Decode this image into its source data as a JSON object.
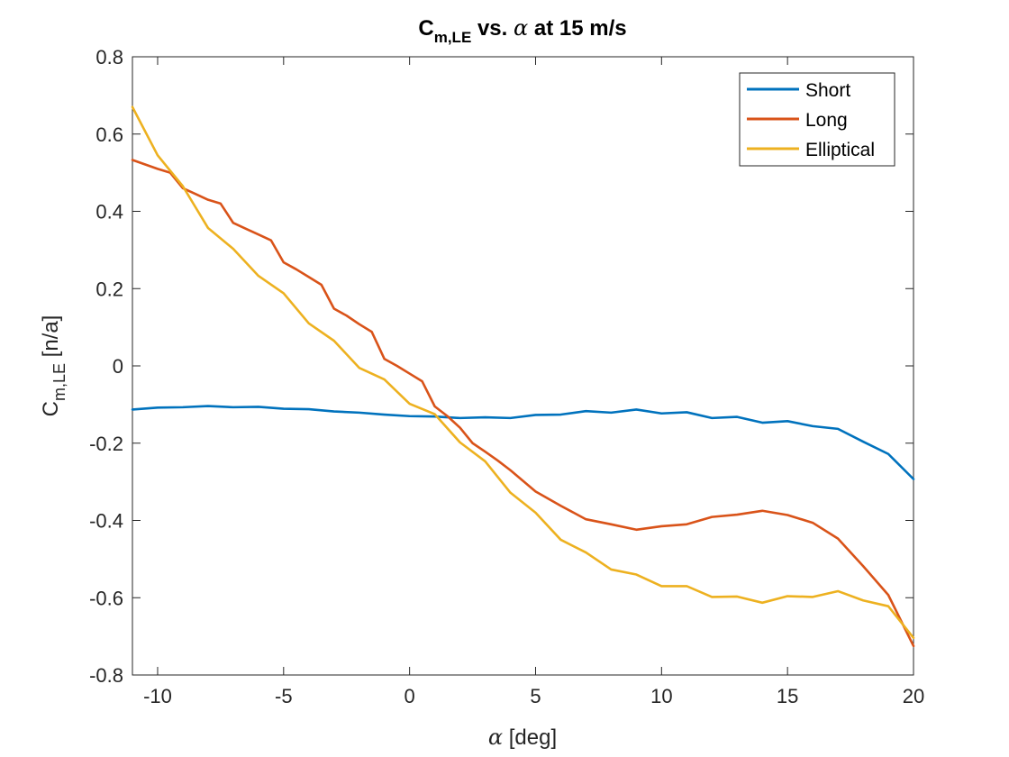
{
  "chart_data": {
    "type": "line",
    "title": {
      "main": "C",
      "subscript": "m,LE",
      "mid": " vs. ",
      "symbol": "α",
      "suffix": " at 15 m/s"
    },
    "xlabel": {
      "symbol": "α",
      "text": " [deg]"
    },
    "ylabel": {
      "main": "C",
      "subscript": "m,LE",
      "suffix": " [n/a]"
    },
    "xlim": [
      -11,
      20
    ],
    "ylim": [
      -0.8,
      0.8
    ],
    "xticks": [
      -10,
      -5,
      0,
      5,
      10,
      15,
      20
    ],
    "yticks": [
      -0.8,
      -0.6,
      -0.4,
      -0.2,
      0,
      0.2,
      0.4,
      0.6,
      0.8
    ],
    "xtick_labels": [
      "-10",
      "-5",
      "0",
      "5",
      "10",
      "15",
      "20"
    ],
    "ytick_labels": [
      "-0.8",
      "-0.6",
      "-0.4",
      "-0.2",
      "0",
      "0.2",
      "0.4",
      "0.6",
      "0.8"
    ],
    "grid": false,
    "legend_position": "top-right",
    "series": [
      {
        "name": "Short",
        "color": "#0072BD",
        "x": [
          -11,
          -10,
          -9,
          -8,
          -7,
          -6,
          -5,
          -4,
          -3,
          -2,
          -1,
          0,
          1,
          2,
          3,
          4,
          5,
          6,
          7,
          8,
          9,
          10,
          11,
          12,
          13,
          14,
          15,
          16,
          17,
          18,
          19,
          20
        ],
        "y": [
          -0.113,
          -0.108,
          -0.107,
          -0.104,
          -0.107,
          -0.106,
          -0.111,
          -0.112,
          -0.118,
          -0.121,
          -0.126,
          -0.13,
          -0.131,
          -0.135,
          -0.133,
          -0.135,
          -0.127,
          -0.126,
          -0.117,
          -0.121,
          -0.113,
          -0.123,
          -0.12,
          -0.135,
          -0.132,
          -0.147,
          -0.143,
          -0.156,
          -0.163,
          -0.196,
          -0.228,
          -0.293
        ]
      },
      {
        "name": "Long",
        "color": "#D95319",
        "x": [
          -11,
          -10,
          -9.5,
          -9,
          -8.5,
          -8,
          -7.5,
          -7,
          -6.5,
          -6,
          -5.5,
          -5,
          -4.5,
          -4,
          -3.5,
          -3,
          -2.5,
          -2,
          -1.5,
          -1,
          -0.5,
          0,
          0.5,
          1,
          1.5,
          2,
          2.5,
          3,
          3.5,
          4,
          5,
          6,
          7,
          8,
          9,
          10,
          11,
          12,
          13,
          14,
          15,
          16,
          17,
          18,
          19,
          20
        ],
        "y": [
          0.533,
          0.51,
          0.5,
          0.46,
          0.445,
          0.43,
          0.42,
          0.37,
          0.355,
          0.34,
          0.325,
          0.268,
          0.25,
          0.23,
          0.21,
          0.148,
          0.13,
          0.108,
          0.088,
          0.018,
          0.0,
          -0.02,
          -0.04,
          -0.105,
          -0.13,
          -0.16,
          -0.2,
          -0.222,
          -0.245,
          -0.27,
          -0.325,
          -0.362,
          -0.397,
          -0.41,
          -0.424,
          -0.415,
          -0.41,
          -0.391,
          -0.385,
          -0.375,
          -0.386,
          -0.406,
          -0.447,
          -0.518,
          -0.593,
          -0.725
        ]
      },
      {
        "name": "Elliptical",
        "color": "#EDB120",
        "x": [
          -11,
          -10,
          -9,
          -8,
          -7,
          -6,
          -5,
          -4,
          -3,
          -2,
          -1,
          0,
          1,
          2,
          3,
          4,
          5,
          6,
          7,
          8,
          9,
          10,
          11,
          12,
          13,
          14,
          15,
          16,
          17,
          18,
          19,
          20
        ],
        "y": [
          0.67,
          0.545,
          0.465,
          0.357,
          0.303,
          0.233,
          0.188,
          0.11,
          0.065,
          -0.005,
          -0.035,
          -0.098,
          -0.125,
          -0.198,
          -0.247,
          -0.328,
          -0.38,
          -0.45,
          -0.483,
          -0.527,
          -0.54,
          -0.57,
          -0.57,
          -0.598,
          -0.597,
          -0.613,
          -0.596,
          -0.598,
          -0.583,
          -0.607,
          -0.622,
          -0.704
        ]
      }
    ]
  }
}
